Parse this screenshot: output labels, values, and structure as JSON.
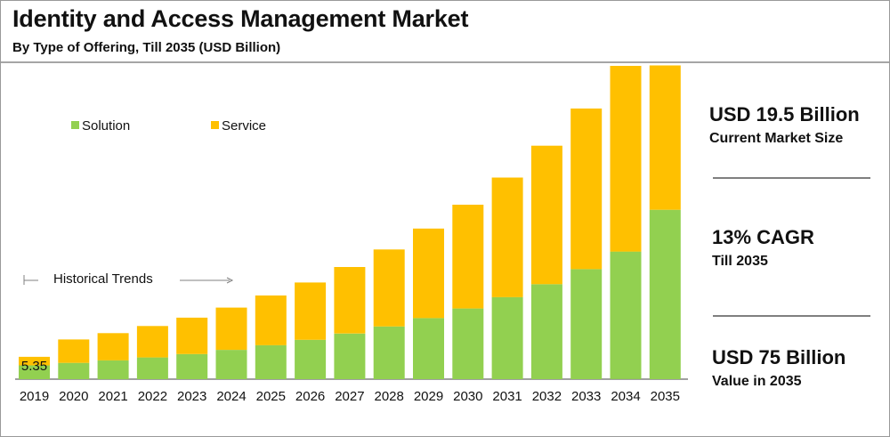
{
  "header": {
    "title": "Identity and Access Management Market",
    "subtitle": "By Type of Offering, Till 2035 (USD Billion)"
  },
  "colors": {
    "solution": "#92d050",
    "service": "#ffc000",
    "axis": "#808080",
    "text": "#111111"
  },
  "chart_data": {
    "type": "bar",
    "stacked": true,
    "title": "Identity and Access Management Market",
    "subtitle": "By Type of Offering, Till 2035 (USD Billion)",
    "xlabel": "",
    "ylabel": "",
    "categories": [
      "2019",
      "2020",
      "2021",
      "2022",
      "2023",
      "2024",
      "2025",
      "2026",
      "2027",
      "2028",
      "2029",
      "2030",
      "2031",
      "2032",
      "2033",
      "2034",
      "2035"
    ],
    "series": [
      {
        "name": "Solution",
        "values": [
          3.3,
          3.9,
          4.5,
          5.2,
          6.0,
          7.0,
          8.1,
          9.4,
          10.9,
          12.6,
          14.6,
          16.9,
          19.6,
          22.7,
          26.3,
          30.5,
          40.5
        ]
      },
      {
        "name": "Service",
        "values": [
          2.05,
          5.6,
          6.5,
          7.5,
          8.7,
          10.1,
          11.9,
          13.7,
          15.9,
          18.4,
          21.4,
          24.8,
          28.6,
          33.1,
          38.4,
          44.4,
          34.5
        ]
      }
    ],
    "ylim": [
      0,
      80
    ],
    "data_labels": [
      {
        "category": "2019",
        "text": "5.35"
      }
    ],
    "legend": [
      "Solution",
      "Service"
    ],
    "legend_position": "top-left",
    "annotation": "Historical Trends",
    "grid": false
  },
  "sidebar": {
    "stats": [
      {
        "value": "USD 19.5 Billion",
        "label": "Current Market Size"
      },
      {
        "value": "13% CAGR",
        "label": "Till 2035"
      },
      {
        "value": "USD 75 Billion",
        "label": "Value in 2035"
      }
    ]
  }
}
